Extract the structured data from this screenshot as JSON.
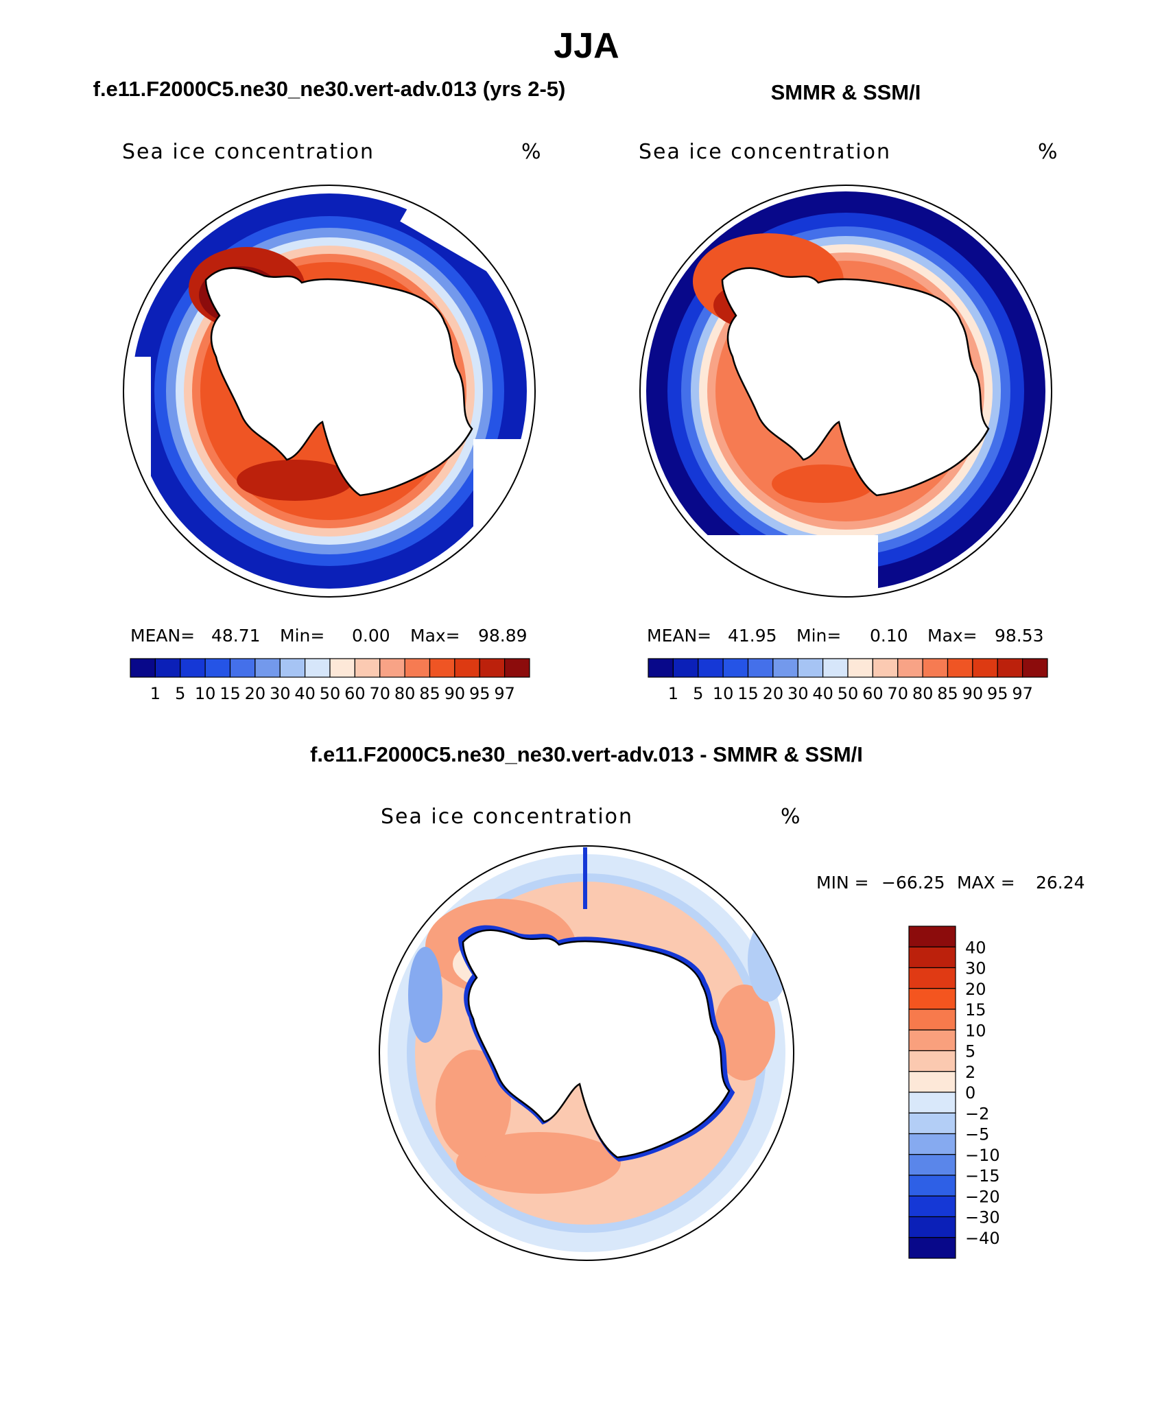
{
  "page_title": "JJA",
  "panels": [
    {
      "title": "f.e11.F2000C5.ne30_ne30.vert-adv.013 (yrs 2-5)",
      "variable": "Sea ice concentration",
      "units": "%",
      "stats": {
        "mean_label": "MEAN=",
        "mean": "48.71",
        "min_label": "Min=",
        "min": "0.00",
        "max_label": "Max=",
        "max": "98.89"
      }
    },
    {
      "title": "SMMR & SSM/I",
      "variable": "Sea ice concentration",
      "units": "%",
      "stats": {
        "mean_label": "MEAN=",
        "mean": "41.95",
        "min_label": "Min=",
        "min": "0.10",
        "max_label": "Max=",
        "max": "98.53"
      }
    }
  ],
  "diff_panel": {
    "title": "f.e11.F2000C5.ne30_ne30.vert-adv.013 - SMMR & SSM/I",
    "variable": "Sea ice concentration",
    "units": "%",
    "stats": {
      "min_label": "MIN =",
      "min": "−66.25",
      "max_label": "MAX =",
      "max": "26.24"
    }
  },
  "colorbar_abs": {
    "labels": [
      "1",
      "5",
      "10",
      "15",
      "20",
      "30",
      "40",
      "50",
      "60",
      "70",
      "80",
      "85",
      "90",
      "95",
      "97"
    ],
    "colors": [
      "#08088a",
      "#0b20b8",
      "#1538d6",
      "#2554e6",
      "#4470ea",
      "#7399ec",
      "#a6c4f4",
      "#d6e6fa",
      "#fde8d8",
      "#fbcab2",
      "#f8a386",
      "#f67b52",
      "#ef5524",
      "#dd3a12",
      "#bc210c",
      "#8c0c0c"
    ]
  },
  "colorbar_diff": {
    "labels": [
      "40",
      "30",
      "20",
      "15",
      "10",
      "5",
      "2",
      "0",
      "−2",
      "−5",
      "−10",
      "−15",
      "−20",
      "−30",
      "−40"
    ],
    "colors": [
      "#8c0c0c",
      "#bc210c",
      "#e03a14",
      "#f4551f",
      "#f77a4c",
      "#f9a07d",
      "#fbc9b0",
      "#fde8d8",
      "#d9e8fa",
      "#b3cef6",
      "#86aaf0",
      "#5a86ea",
      "#2e60e6",
      "#1538d6",
      "#0b20b8",
      "#08088a"
    ]
  }
}
